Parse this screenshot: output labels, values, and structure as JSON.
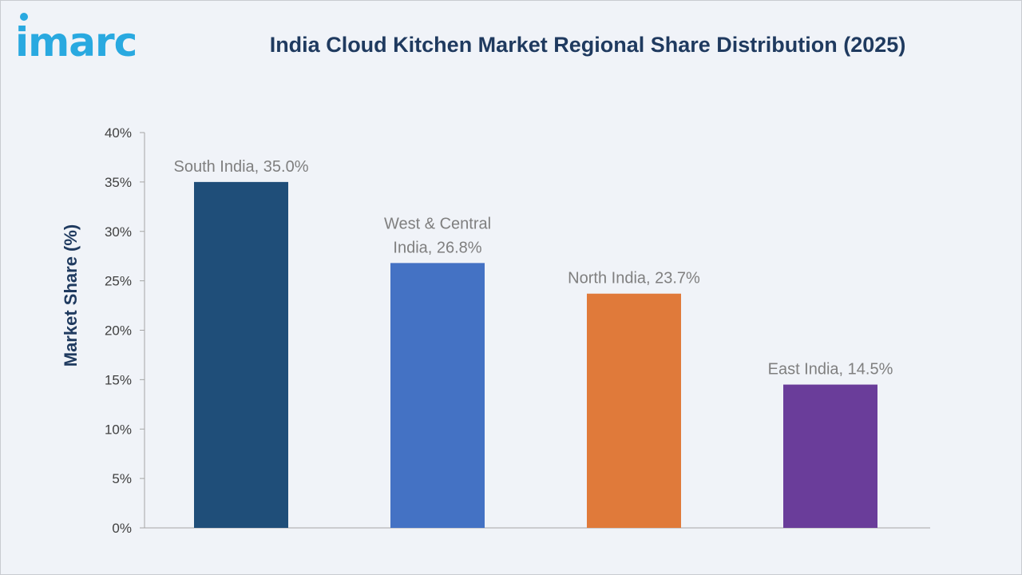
{
  "logo": {
    "text": "imarc"
  },
  "chart_data": {
    "type": "bar",
    "title": "India Cloud Kitchen Market Regional Share Distribution (2025)",
    "ylabel": "Market Share (%)",
    "xlabel": "",
    "ylim": [
      0,
      40
    ],
    "yticks": [
      0,
      5,
      10,
      15,
      20,
      25,
      30,
      35,
      40
    ],
    "ytick_labels": [
      "0%",
      "5%",
      "10%",
      "15%",
      "20%",
      "25%",
      "30%",
      "35%",
      "40%"
    ],
    "grid": false,
    "categories": [
      "South India",
      "West & Central India",
      "North India",
      "East India"
    ],
    "values": [
      35.0,
      26.8,
      23.7,
      14.5
    ],
    "data_labels": [
      [
        "South India, 35.0%"
      ],
      [
        "West & Central",
        "India, 26.8%"
      ],
      [
        "North India, 23.7%"
      ],
      [
        "East India, 14.5%"
      ]
    ],
    "colors": [
      "#1f4e79",
      "#4472c4",
      "#e07a3a",
      "#6a3d9a"
    ]
  }
}
